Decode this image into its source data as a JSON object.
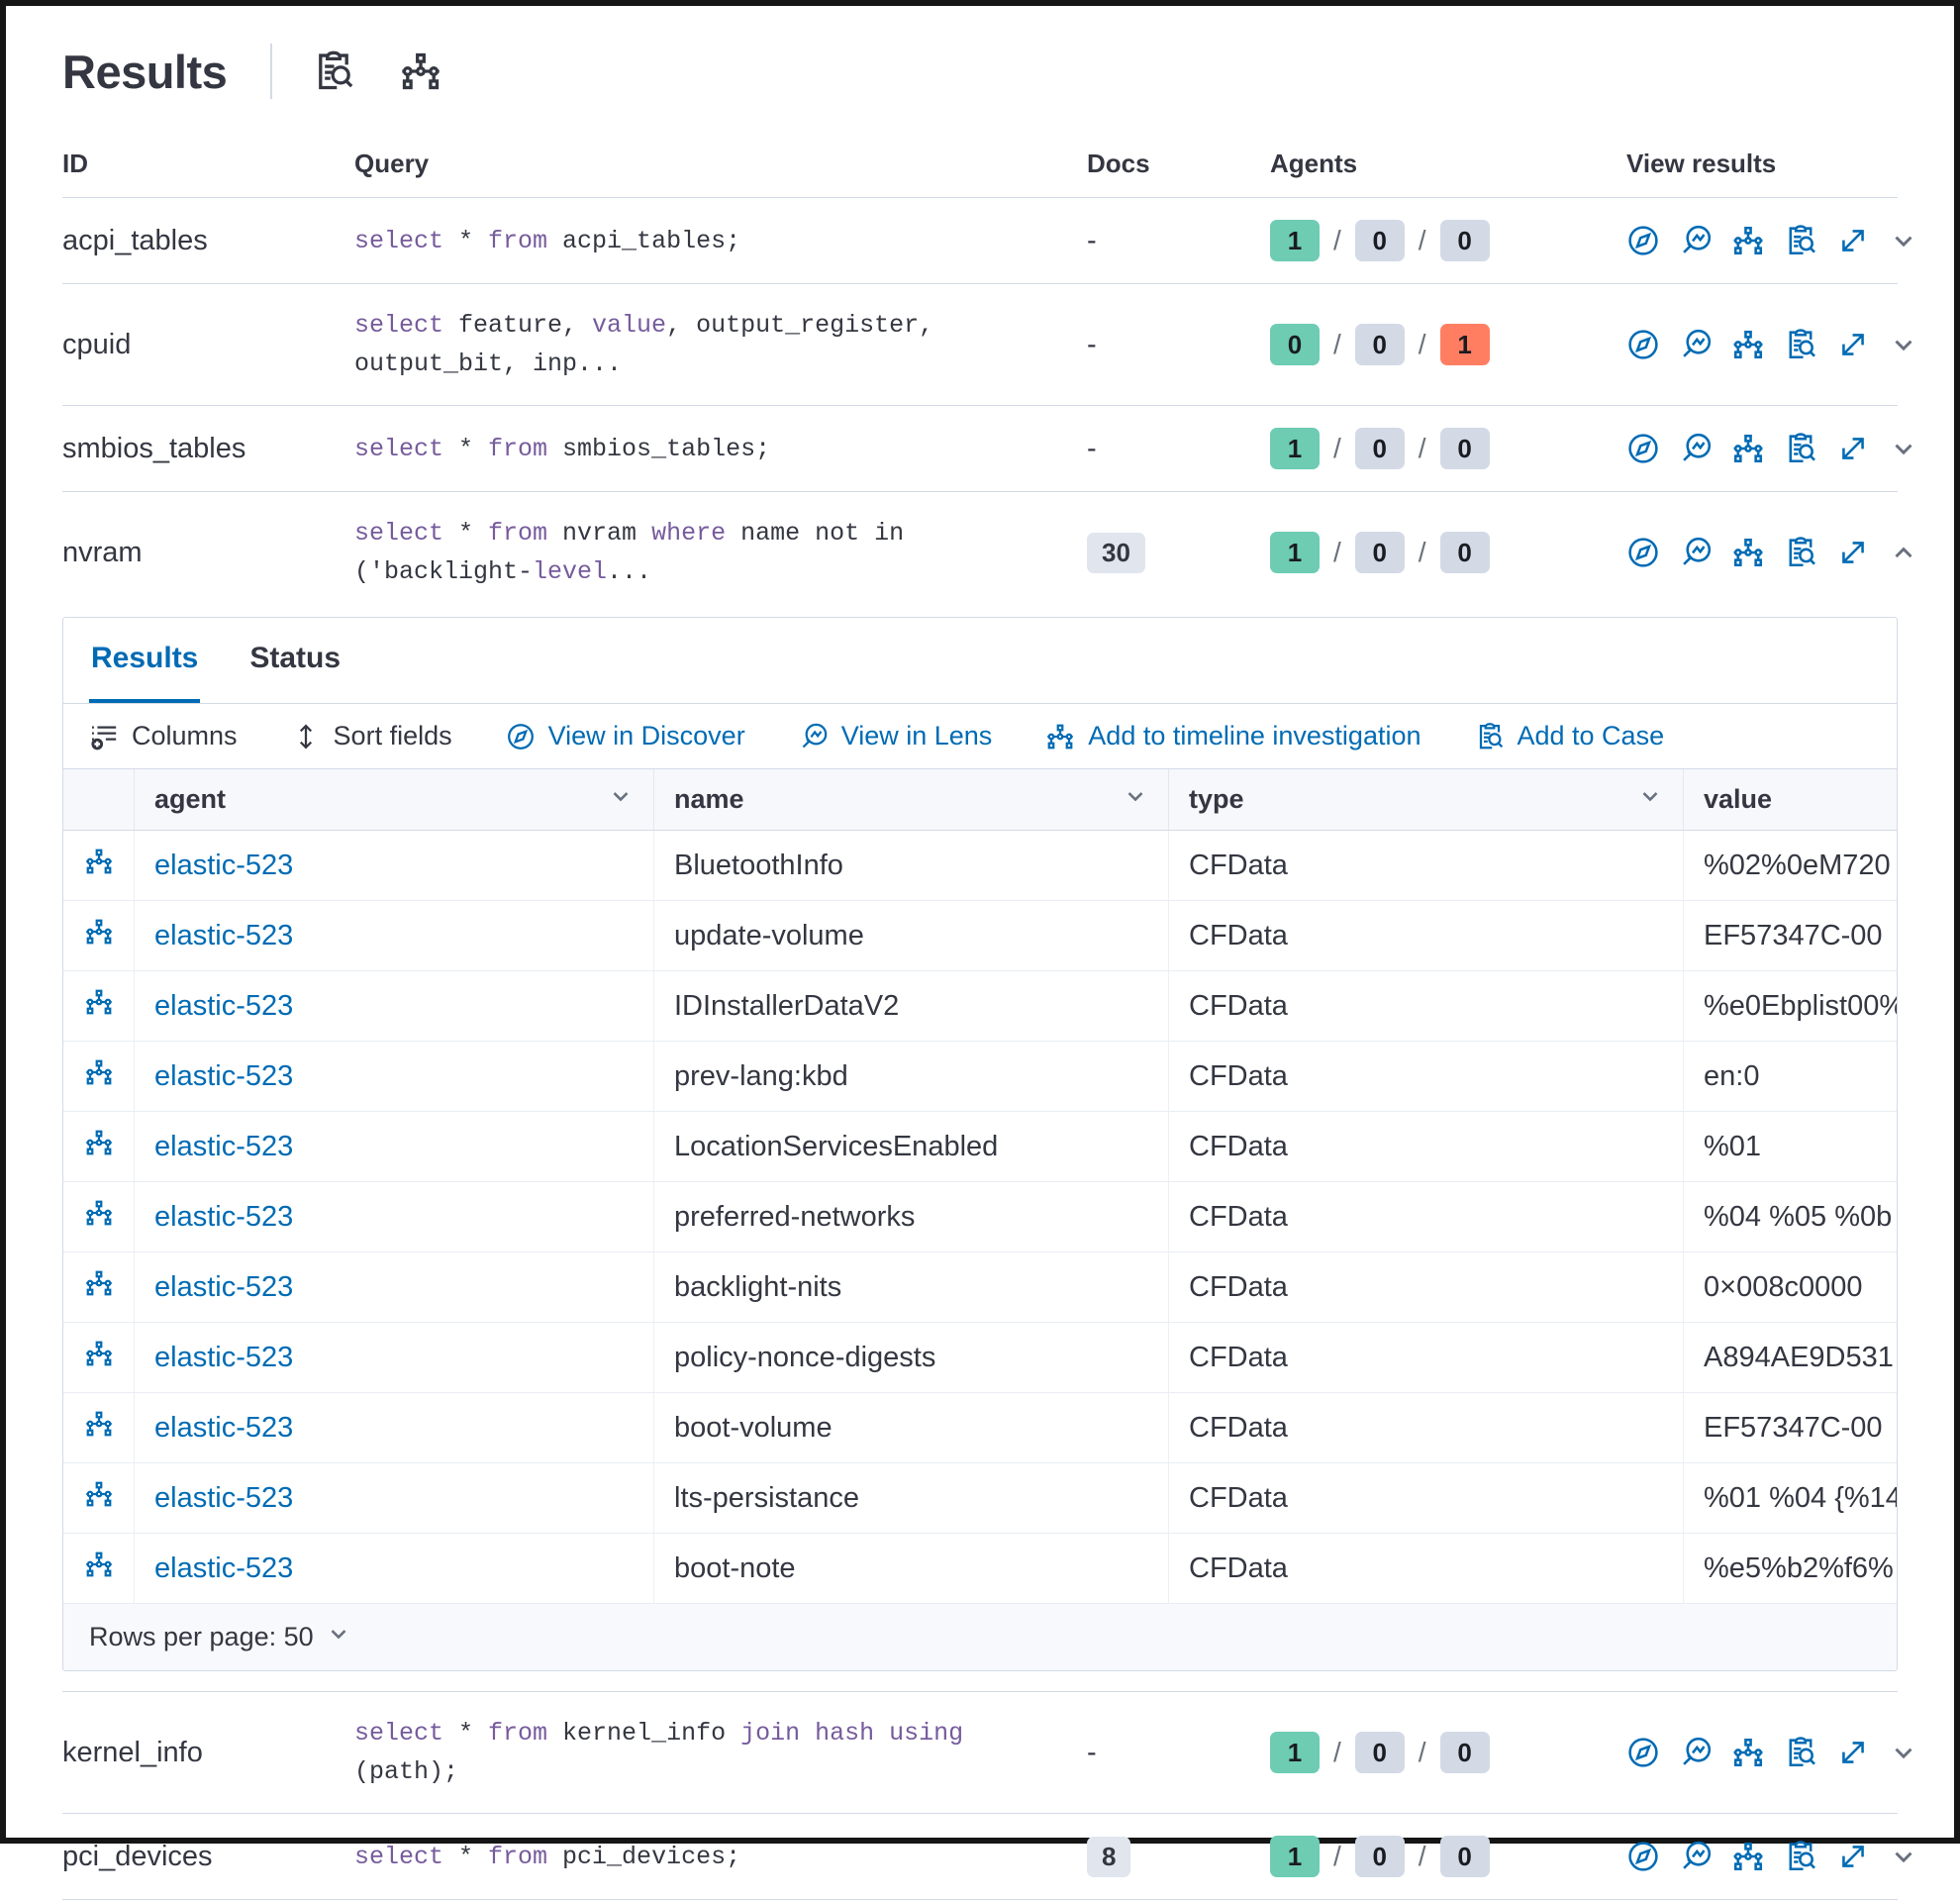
{
  "colors": {
    "primary": "#006BB4",
    "text": "#343741",
    "border": "#D3DAE6",
    "success": "#6DCCB1",
    "danger": "#FF7E62",
    "neutral": "#D3DAE6",
    "keyword": "#765B9C"
  },
  "page": {
    "title": "Results"
  },
  "header": {
    "icons": [
      "inspect-icon",
      "timeline-tree-icon"
    ]
  },
  "table": {
    "headers": {
      "id": "ID",
      "query": "Query",
      "docs": "Docs",
      "agents": "Agents",
      "view_results": "View results"
    },
    "rows": [
      {
        "id": "acpi_tables",
        "query": [
          [
            {
              "t": "select",
              "k": true
            },
            {
              "t": " * "
            },
            {
              "t": "from",
              "k": true
            },
            {
              "t": " acpi_tables;"
            }
          ]
        ],
        "docs": "-",
        "docs_is_badge": false,
        "agents": {
          "a": "1",
          "b": "0",
          "c": "0"
        },
        "expanded": false
      },
      {
        "id": "cpuid",
        "query": [
          [
            {
              "t": "select",
              "k": true
            },
            {
              "t": " feature, "
            },
            {
              "t": "value",
              "k": true
            },
            {
              "t": ", output_register,"
            }
          ],
          [
            {
              "t": "output_bit, inp..."
            }
          ]
        ],
        "docs": "-",
        "docs_is_badge": false,
        "agents": {
          "a": "0",
          "b": "0",
          "c": "1"
        },
        "expanded": false
      },
      {
        "id": "smbios_tables",
        "query": [
          [
            {
              "t": "select",
              "k": true
            },
            {
              "t": " * "
            },
            {
              "t": "from",
              "k": true
            },
            {
              "t": " smbios_tables;"
            }
          ]
        ],
        "docs": "-",
        "docs_is_badge": false,
        "agents": {
          "a": "1",
          "b": "0",
          "c": "0"
        },
        "expanded": false
      },
      {
        "id": "nvram",
        "query": [
          [
            {
              "t": "select",
              "k": true
            },
            {
              "t": " * "
            },
            {
              "t": "from",
              "k": true
            },
            {
              "t": " nvram "
            },
            {
              "t": "where",
              "k": true
            },
            {
              "t": " name not in"
            }
          ],
          [
            {
              "t": "('backlight-"
            },
            {
              "t": "level",
              "k": true
            },
            {
              "t": "..."
            }
          ]
        ],
        "docs": "30",
        "docs_is_badge": true,
        "agents": {
          "a": "1",
          "b": "0",
          "c": "0"
        },
        "expanded": true
      },
      {
        "id": "kernel_info",
        "query": [
          [
            {
              "t": "select",
              "k": true
            },
            {
              "t": " * "
            },
            {
              "t": "from",
              "k": true
            },
            {
              "t": " kernel_info "
            },
            {
              "t": "join hash using",
              "k": true
            },
            {
              "t": " (path);"
            }
          ]
        ],
        "docs": "-",
        "docs_is_badge": false,
        "agents": {
          "a": "1",
          "b": "0",
          "c": "0"
        },
        "expanded": false
      },
      {
        "id": "pci_devices",
        "query": [
          [
            {
              "t": "select",
              "k": true
            },
            {
              "t": " * "
            },
            {
              "t": "from",
              "k": true
            },
            {
              "t": " pci_devices;"
            }
          ]
        ],
        "docs": "8",
        "docs_is_badge": true,
        "agents": {
          "a": "1",
          "b": "0",
          "c": "0"
        },
        "expanded": false
      }
    ]
  },
  "panel": {
    "tabs": [
      {
        "label": "Results",
        "active": true
      },
      {
        "label": "Status",
        "active": false
      }
    ],
    "toolbar": [
      {
        "label": "Columns",
        "icon": "list-add-icon"
      },
      {
        "label": "Sort fields",
        "icon": "sort-icon"
      },
      {
        "label": "View in Discover",
        "icon": "discover-compass-icon"
      },
      {
        "label": "View in Lens",
        "icon": "lens-icon"
      },
      {
        "label": "Add to timeline investigation",
        "icon": "timeline-tree-icon"
      },
      {
        "label": "Add to Case",
        "icon": "case-inspect-icon"
      }
    ],
    "grid": {
      "headers": {
        "agent": "agent",
        "name": "name",
        "type": "type",
        "value": "value"
      },
      "rows": [
        {
          "agent": "elastic-523",
          "name": "BluetoothInfo",
          "type": "CFData",
          "value": "%02%0eM720"
        },
        {
          "agent": "elastic-523",
          "name": "update-volume",
          "type": "CFData",
          "value": "EF57347C-00"
        },
        {
          "agent": "elastic-523",
          "name": "IDInstallerDataV2",
          "type": "CFData",
          "value": "%e0Ebplist00%"
        },
        {
          "agent": "elastic-523",
          "name": "prev-lang:kbd",
          "type": "CFData",
          "value": "en:0"
        },
        {
          "agent": "elastic-523",
          "name": "LocationServicesEnabled",
          "type": "CFData",
          "value": "%01"
        },
        {
          "agent": "elastic-523",
          "name": "preferred-networks",
          "type": "CFData",
          "value": "%04 %05 %0b"
        },
        {
          "agent": "elastic-523",
          "name": "backlight-nits",
          "type": "CFData",
          "value": "0×008c0000"
        },
        {
          "agent": "elastic-523",
          "name": "policy-nonce-digests",
          "type": "CFData",
          "value": "A894AE9D531"
        },
        {
          "agent": "elastic-523",
          "name": "boot-volume",
          "type": "CFData",
          "value": "EF57347C-00"
        },
        {
          "agent": "elastic-523",
          "name": "lts-persistance",
          "type": "CFData",
          "value": "%01 %04 {%14"
        },
        {
          "agent": "elastic-523",
          "name": "boot-note",
          "type": "CFData",
          "value": "%e5%b2%f6%"
        }
      ],
      "rows_per_page_label": "Rows per page: 50"
    }
  }
}
